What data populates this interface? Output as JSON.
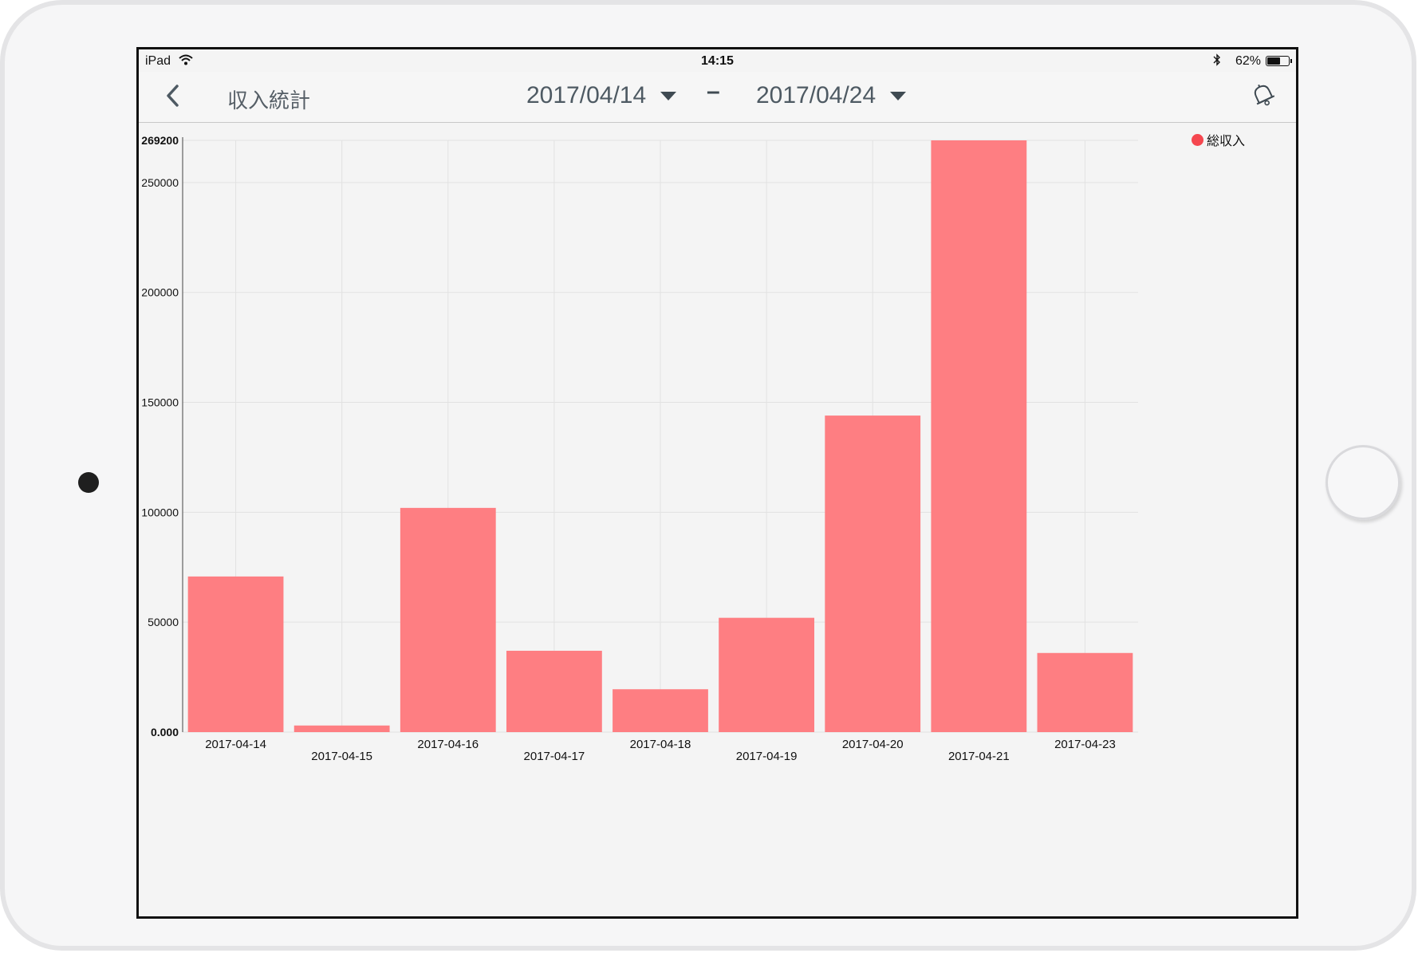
{
  "status_bar": {
    "device": "iPad",
    "time": "14:15",
    "battery": "62%",
    "battery_level": 0.62
  },
  "nav": {
    "title": "収入統計",
    "start_date": "2017/04/14",
    "end_date": "2017/04/24",
    "separator": "–"
  },
  "icons": {
    "back": "chevron-left-icon",
    "start_caret": "caret-down-icon",
    "end_caret": "caret-down-icon",
    "bell": "bell-icon",
    "wifi": "wifi-icon",
    "bluetooth": "bluetooth-icon",
    "battery": "battery-icon"
  },
  "colors": {
    "bar": "#fe7e82",
    "legend_dot": "#f5474f",
    "grid": "#e2e2e2"
  },
  "chart_data": {
    "type": "bar",
    "categories": [
      "2017-04-14",
      "2017-04-15",
      "2017-04-16",
      "2017-04-17",
      "2017-04-18",
      "2017-04-19",
      "2017-04-20",
      "2017-04-21",
      "2017-04-23"
    ],
    "series": [
      {
        "name": "総収入",
        "values": [
          70800,
          3000,
          102000,
          37000,
          19500,
          52000,
          144000,
          269200,
          36000
        ]
      }
    ],
    "ylim": [
      0,
      269200
    ],
    "y_ticks": [
      "0.000",
      "50000",
      "100000",
      "150000",
      "200000",
      "250000",
      "269200"
    ],
    "y_tick_values": [
      0,
      50000,
      100000,
      150000,
      200000,
      250000,
      269200
    ],
    "grid": true,
    "legend": "top-right",
    "title": "",
    "xlabel": "",
    "ylabel": ""
  }
}
